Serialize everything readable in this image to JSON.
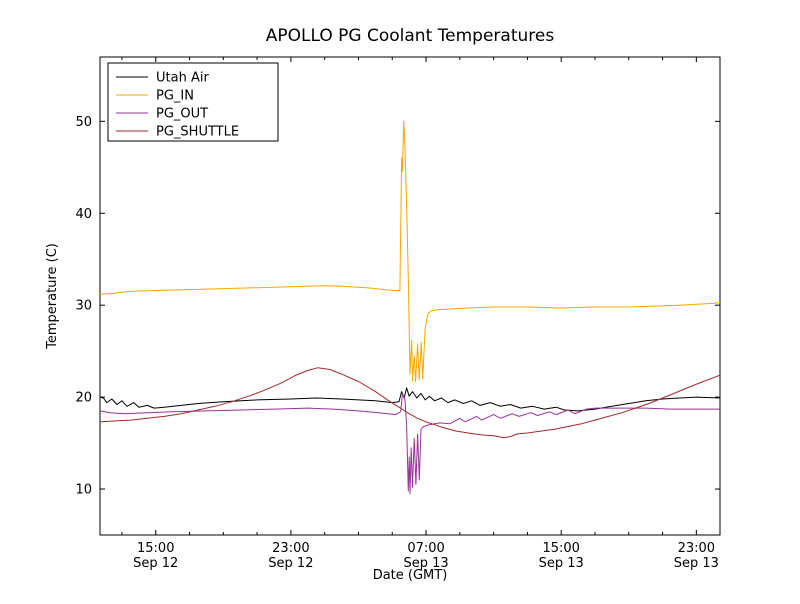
{
  "title": "APOLLO PG Coolant Temperatures",
  "chart_data": {
    "type": "line",
    "title": "APOLLO PG Coolant Temperatures",
    "xlabel": "Date (GMT)",
    "ylabel": "Temperature (C)",
    "x_unit": "hours since Sep 12 00:00 GMT",
    "xlim": [
      11.7,
      48.4
    ],
    "ylim": [
      5,
      57
    ],
    "grid": false,
    "legend_position": "upper left",
    "xticks": [
      {
        "value": 15,
        "label": "15:00",
        "sublabel": "Sep 12"
      },
      {
        "value": 23,
        "label": "23:00",
        "sublabel": "Sep 12"
      },
      {
        "value": 31,
        "label": "07:00",
        "sublabel": "Sep 13"
      },
      {
        "value": 39,
        "label": "15:00",
        "sublabel": "Sep 13"
      },
      {
        "value": 47,
        "label": "23:00",
        "sublabel": "Sep 13"
      }
    ],
    "xminorticks": [
      13,
      17,
      19,
      21,
      25,
      27,
      29,
      33,
      35,
      37,
      41,
      43,
      45
    ],
    "yticks": [
      10,
      20,
      30,
      40,
      50
    ],
    "series": [
      {
        "name": "Utah Air",
        "color": "#000000",
        "points": [
          [
            11.7,
            20.0
          ],
          [
            11.9,
            19.9
          ],
          [
            12.1,
            19.4
          ],
          [
            12.4,
            19.8
          ],
          [
            12.7,
            19.2
          ],
          [
            13.0,
            19.6
          ],
          [
            13.3,
            19.0
          ],
          [
            13.7,
            19.4
          ],
          [
            14.0,
            18.9
          ],
          [
            14.5,
            19.1
          ],
          [
            14.9,
            18.8
          ],
          [
            15.5,
            18.9
          ],
          [
            16.5,
            19.1
          ],
          [
            17.5,
            19.3
          ],
          [
            19.0,
            19.5
          ],
          [
            21.0,
            19.7
          ],
          [
            23.0,
            19.8
          ],
          [
            24.5,
            19.9
          ],
          [
            26.0,
            19.8
          ],
          [
            27.0,
            19.7
          ],
          [
            28.0,
            19.6
          ],
          [
            29.0,
            19.4
          ],
          [
            29.4,
            19.5
          ],
          [
            29.55,
            20.6
          ],
          [
            29.7,
            19.9
          ],
          [
            29.85,
            21.0
          ],
          [
            30.0,
            20.1
          ],
          [
            30.2,
            20.6
          ],
          [
            30.45,
            19.9
          ],
          [
            30.7,
            20.4
          ],
          [
            30.95,
            19.7
          ],
          [
            31.2,
            20.1
          ],
          [
            31.5,
            19.6
          ],
          [
            31.9,
            19.9
          ],
          [
            32.3,
            19.4
          ],
          [
            32.7,
            19.7
          ],
          [
            33.2,
            19.3
          ],
          [
            33.7,
            19.6
          ],
          [
            34.2,
            19.1
          ],
          [
            34.8,
            19.4
          ],
          [
            35.4,
            19.0
          ],
          [
            36.0,
            19.2
          ],
          [
            36.6,
            18.8
          ],
          [
            37.3,
            19.0
          ],
          [
            38.0,
            18.7
          ],
          [
            38.7,
            18.9
          ],
          [
            39.2,
            18.6
          ],
          [
            40.0,
            18.5
          ],
          [
            41.0,
            18.7
          ],
          [
            42.0,
            19.0
          ],
          [
            43.0,
            19.3
          ],
          [
            44.0,
            19.6
          ],
          [
            45.0,
            19.8
          ],
          [
            46.0,
            19.9
          ],
          [
            47.0,
            20.0
          ],
          [
            48.4,
            19.9
          ]
        ]
      },
      {
        "name": "PG_IN",
        "color": "#ffa500",
        "points": [
          [
            11.7,
            31.2
          ],
          [
            12.5,
            31.3
          ],
          [
            13.5,
            31.5
          ],
          [
            15.0,
            31.6
          ],
          [
            17.0,
            31.7
          ],
          [
            19.0,
            31.8
          ],
          [
            21.0,
            31.9
          ],
          [
            23.0,
            32.0
          ],
          [
            24.5,
            32.1
          ],
          [
            25.5,
            32.1
          ],
          [
            26.5,
            32.0
          ],
          [
            27.5,
            31.9
          ],
          [
            28.5,
            31.7
          ],
          [
            29.2,
            31.6
          ],
          [
            29.45,
            31.6
          ],
          [
            29.55,
            46.0
          ],
          [
            29.6,
            44.5
          ],
          [
            29.68,
            50.0
          ],
          [
            29.75,
            47.5
          ],
          [
            29.85,
            41.0
          ],
          [
            29.95,
            33.0
          ],
          [
            30.05,
            22.5
          ],
          [
            30.15,
            26.2
          ],
          [
            30.2,
            21.8
          ],
          [
            30.3,
            24.5
          ],
          [
            30.38,
            21.7
          ],
          [
            30.5,
            25.8
          ],
          [
            30.6,
            21.9
          ],
          [
            30.72,
            26.0
          ],
          [
            30.8,
            22.0
          ],
          [
            30.95,
            27.5
          ],
          [
            31.1,
            29.0
          ],
          [
            31.3,
            29.4
          ],
          [
            31.7,
            29.5
          ],
          [
            32.5,
            29.6
          ],
          [
            33.5,
            29.7
          ],
          [
            35.0,
            29.8
          ],
          [
            37.0,
            29.8
          ],
          [
            39.0,
            29.7
          ],
          [
            41.0,
            29.8
          ],
          [
            43.0,
            29.8
          ],
          [
            44.5,
            29.9
          ],
          [
            46.0,
            30.0
          ],
          [
            47.0,
            30.1
          ],
          [
            48.0,
            30.2
          ],
          [
            48.4,
            30.3
          ]
        ]
      },
      {
        "name": "PG_OUT",
        "color": "#993399",
        "points": [
          [
            11.7,
            18.5
          ],
          [
            12.3,
            18.3
          ],
          [
            13.2,
            18.2
          ],
          [
            14.5,
            18.3
          ],
          [
            16.0,
            18.4
          ],
          [
            18.0,
            18.5
          ],
          [
            20.0,
            18.6
          ],
          [
            22.0,
            18.7
          ],
          [
            24.0,
            18.8
          ],
          [
            25.5,
            18.7
          ],
          [
            27.0,
            18.5
          ],
          [
            28.2,
            18.3
          ],
          [
            29.2,
            18.1
          ],
          [
            29.5,
            18.4
          ],
          [
            29.6,
            20.3
          ],
          [
            29.75,
            19.8
          ],
          [
            29.85,
            17.0
          ],
          [
            29.95,
            9.8
          ],
          [
            30.0,
            13.5
          ],
          [
            30.05,
            9.5
          ],
          [
            30.12,
            14.5
          ],
          [
            30.2,
            10.2
          ],
          [
            30.3,
            15.5
          ],
          [
            30.4,
            10.5
          ],
          [
            30.5,
            16.0
          ],
          [
            30.6,
            11.0
          ],
          [
            30.7,
            16.5
          ],
          [
            30.85,
            16.8
          ],
          [
            31.2,
            17.0
          ],
          [
            31.8,
            17.2
          ],
          [
            32.4,
            17.1
          ],
          [
            33.0,
            17.7
          ],
          [
            33.3,
            17.3
          ],
          [
            34.0,
            17.9
          ],
          [
            34.3,
            17.5
          ],
          [
            35.0,
            18.1
          ],
          [
            35.4,
            17.7
          ],
          [
            36.1,
            18.2
          ],
          [
            36.5,
            17.9
          ],
          [
            37.2,
            18.3
          ],
          [
            37.6,
            18.0
          ],
          [
            38.3,
            18.4
          ],
          [
            38.7,
            18.1
          ],
          [
            39.4,
            18.6
          ],
          [
            39.8,
            18.2
          ],
          [
            40.5,
            18.7
          ],
          [
            41.0,
            18.8
          ],
          [
            42.5,
            18.8
          ],
          [
            44.0,
            18.8
          ],
          [
            45.5,
            18.7
          ],
          [
            47.0,
            18.7
          ],
          [
            48.4,
            18.7
          ]
        ]
      },
      {
        "name": "PG_SHUTTLE",
        "color": "#a52a2a",
        "points": [
          [
            11.7,
            17.3
          ],
          [
            12.5,
            17.4
          ],
          [
            13.5,
            17.5
          ],
          [
            14.5,
            17.7
          ],
          [
            15.5,
            17.9
          ],
          [
            16.5,
            18.2
          ],
          [
            17.5,
            18.6
          ],
          [
            18.5,
            19.0
          ],
          [
            19.5,
            19.5
          ],
          [
            20.5,
            20.1
          ],
          [
            21.5,
            20.8
          ],
          [
            22.5,
            21.6
          ],
          [
            23.3,
            22.4
          ],
          [
            24.0,
            22.9
          ],
          [
            24.6,
            23.2
          ],
          [
            25.3,
            23.0
          ],
          [
            26.0,
            22.5
          ],
          [
            27.0,
            21.7
          ],
          [
            28.0,
            20.6
          ],
          [
            28.8,
            19.6
          ],
          [
            29.4,
            18.9
          ],
          [
            30.0,
            18.2
          ],
          [
            30.5,
            17.7
          ],
          [
            31.0,
            17.3
          ],
          [
            31.5,
            17.0
          ],
          [
            32.0,
            16.7
          ],
          [
            32.8,
            16.3
          ],
          [
            33.5,
            16.1
          ],
          [
            34.2,
            15.9
          ],
          [
            35.0,
            15.8
          ],
          [
            35.6,
            15.6
          ],
          [
            36.0,
            15.7
          ],
          [
            36.4,
            16.0
          ],
          [
            37.0,
            16.1
          ],
          [
            37.8,
            16.3
          ],
          [
            38.6,
            16.5
          ],
          [
            39.4,
            16.8
          ],
          [
            40.2,
            17.1
          ],
          [
            41.0,
            17.5
          ],
          [
            41.8,
            17.9
          ],
          [
            42.6,
            18.3
          ],
          [
            43.4,
            18.8
          ],
          [
            44.2,
            19.3
          ],
          [
            45.0,
            19.9
          ],
          [
            45.8,
            20.5
          ],
          [
            46.6,
            21.1
          ],
          [
            47.4,
            21.7
          ],
          [
            48.0,
            22.1
          ],
          [
            48.4,
            22.4
          ]
        ]
      }
    ]
  }
}
